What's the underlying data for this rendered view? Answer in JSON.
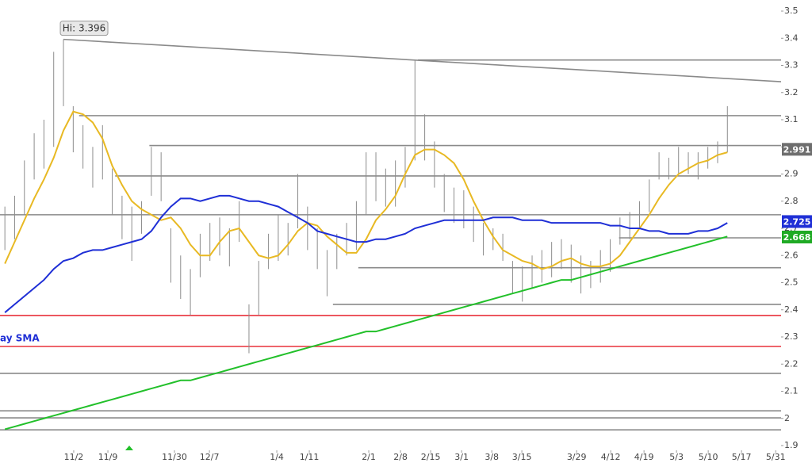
{
  "chart_data": {
    "type": "ohlc",
    "xlim": [
      -0.5,
      79.5
    ],
    "ylim": [
      1.8825,
      3.5409
    ],
    "yticks": [
      1.9,
      2,
      2.1,
      2.2,
      2.3,
      2.4,
      2.5,
      2.6,
      2.7,
      2.8,
      2.9,
      3,
      3.1,
      3.2,
      3.3,
      3.4,
      3.5
    ],
    "xticks": [
      {
        "value": 7.05,
        "label": "11/2"
      },
      {
        "value": 10.55,
        "label": "11/9"
      },
      {
        "value": 17.37,
        "label": "11/30"
      },
      {
        "value": 20.95,
        "label": "12/7"
      },
      {
        "value": 27.85,
        "label": "1/4"
      },
      {
        "value": 31.18,
        "label": "1/11"
      },
      {
        "value": 37.27,
        "label": "2/1"
      },
      {
        "value": 40.52,
        "label": "2/8"
      },
      {
        "value": 43.61,
        "label": "2/15"
      },
      {
        "value": 46.78,
        "label": "3/1"
      },
      {
        "value": 49.87,
        "label": "3/8"
      },
      {
        "value": 52.95,
        "label": "3/15"
      },
      {
        "value": 58.56,
        "label": "3/29"
      },
      {
        "value": 62.05,
        "label": "4/12"
      },
      {
        "value": 65.46,
        "label": "4/19"
      },
      {
        "value": 68.79,
        "label": "5/3"
      },
      {
        "value": 72.04,
        "label": "5/10"
      },
      {
        "value": 75.45,
        "label": "5/17"
      },
      {
        "value": 78.95,
        "label": "5/31"
      }
    ],
    "bar_color": "#8c8c8c",
    "x": [
      0,
      1,
      2,
      3,
      4,
      5,
      6,
      7,
      8,
      9,
      10,
      11,
      12,
      13,
      14,
      15,
      16,
      17,
      18,
      19,
      20,
      21,
      22,
      23,
      24,
      25,
      26,
      27,
      28,
      29,
      30,
      31,
      32,
      33,
      34,
      35,
      36,
      37,
      38,
      39,
      40,
      41,
      42,
      43,
      44,
      45,
      46,
      47,
      48,
      49,
      50,
      51,
      52,
      53,
      54,
      55,
      56,
      57,
      58,
      59,
      60,
      61,
      62,
      63,
      64,
      65,
      66,
      67,
      68,
      69,
      70,
      71,
      72,
      73,
      74
    ],
    "high": [
      2.78,
      2.82,
      2.95,
      3.05,
      3.1,
      3.35,
      3.396,
      3.15,
      3.08,
      3.0,
      3.08,
      2.92,
      2.82,
      2.78,
      2.8,
      3.0,
      2.98,
      2.7,
      2.6,
      2.55,
      2.68,
      2.72,
      2.74,
      2.7,
      2.8,
      2.42,
      2.58,
      2.68,
      2.75,
      2.72,
      2.9,
      2.78,
      2.7,
      2.62,
      2.68,
      2.72,
      2.8,
      2.98,
      2.98,
      2.92,
      2.95,
      3.0,
      3.32,
      3.12,
      3.02,
      2.9,
      2.85,
      2.84,
      2.78,
      2.72,
      2.7,
      2.68,
      2.58,
      2.56,
      2.6,
      2.62,
      2.65,
      2.66,
      2.64,
      2.6,
      2.58,
      2.62,
      2.66,
      2.74,
      2.76,
      2.8,
      2.88,
      2.98,
      2.96,
      3.0,
      2.98,
      2.98,
      3.0,
      3.02,
      3.15
    ],
    "low": [
      2.62,
      2.66,
      2.75,
      2.88,
      2.92,
      3.0,
      3.15,
      2.98,
      2.92,
      2.85,
      2.88,
      2.75,
      2.66,
      2.58,
      2.68,
      2.82,
      2.8,
      2.5,
      2.44,
      2.38,
      2.52,
      2.58,
      2.6,
      2.56,
      2.65,
      2.24,
      2.38,
      2.55,
      2.58,
      2.6,
      2.7,
      2.62,
      2.55,
      2.45,
      2.55,
      2.6,
      2.62,
      2.75,
      2.8,
      2.78,
      2.78,
      2.85,
      2.95,
      2.95,
      2.85,
      2.76,
      2.72,
      2.7,
      2.65,
      2.6,
      2.62,
      2.58,
      2.46,
      2.43,
      2.48,
      2.5,
      2.52,
      2.55,
      2.5,
      2.46,
      2.48,
      2.5,
      2.54,
      2.64,
      2.66,
      2.7,
      2.76,
      2.88,
      2.88,
      2.9,
      2.9,
      2.88,
      2.92,
      2.94,
      2.98
    ],
    "series": [
      {
        "color": "#e8b923",
        "values": [
          2.57,
          2.65,
          2.73,
          2.81,
          2.88,
          2.96,
          3.06,
          3.13,
          3.12,
          3.09,
          3.03,
          2.93,
          2.86,
          2.8,
          2.77,
          2.75,
          2.73,
          2.74,
          2.7,
          2.64,
          2.6,
          2.6,
          2.65,
          2.69,
          2.7,
          2.65,
          2.6,
          2.59,
          2.6,
          2.64,
          2.69,
          2.72,
          2.71,
          2.67,
          2.64,
          2.61,
          2.61,
          2.66,
          2.73,
          2.77,
          2.82,
          2.9,
          2.97,
          2.99,
          2.99,
          2.97,
          2.94,
          2.88,
          2.8,
          2.73,
          2.67,
          2.62,
          2.6,
          2.58,
          2.57,
          2.55,
          2.56,
          2.58,
          2.59,
          2.57,
          2.56,
          2.56,
          2.57,
          2.6,
          2.65,
          2.7,
          2.75,
          2.81,
          2.86,
          2.9,
          2.92,
          2.94,
          2.95,
          2.97,
          2.98
        ]
      },
      {
        "color": "#1f2fd6",
        "values": [
          2.39,
          2.42,
          2.45,
          2.48,
          2.51,
          2.55,
          2.58,
          2.59,
          2.61,
          2.62,
          2.62,
          2.63,
          2.64,
          2.65,
          2.66,
          2.69,
          2.74,
          2.78,
          2.81,
          2.81,
          2.8,
          2.81,
          2.82,
          2.82,
          2.81,
          2.8,
          2.8,
          2.79,
          2.78,
          2.76,
          2.74,
          2.72,
          2.69,
          2.68,
          2.67,
          2.66,
          2.65,
          2.65,
          2.66,
          2.66,
          2.67,
          2.68,
          2.7,
          2.71,
          2.72,
          2.73,
          2.73,
          2.73,
          2.73,
          2.73,
          2.74,
          2.74,
          2.74,
          2.73,
          2.73,
          2.73,
          2.72,
          2.72,
          2.72,
          2.72,
          2.72,
          2.72,
          2.71,
          2.71,
          2.7,
          2.7,
          2.69,
          2.69,
          2.68,
          2.68,
          2.68,
          2.69,
          2.69,
          2.7,
          2.72
        ]
      },
      {
        "color": "#22c02a",
        "values": [
          1.96,
          1.97,
          1.98,
          1.99,
          2.0,
          2.01,
          2.02,
          2.03,
          2.04,
          2.05,
          2.06,
          2.07,
          2.08,
          2.09,
          2.1,
          2.11,
          2.12,
          2.13,
          2.14,
          2.14,
          2.15,
          2.16,
          2.17,
          2.18,
          2.19,
          2.2,
          2.21,
          2.22,
          2.23,
          2.24,
          2.25,
          2.26,
          2.27,
          2.28,
          2.29,
          2.3,
          2.31,
          2.32,
          2.32,
          2.33,
          2.34,
          2.35,
          2.36,
          2.37,
          2.38,
          2.39,
          2.4,
          2.41,
          2.42,
          2.43,
          2.44,
          2.45,
          2.46,
          2.47,
          2.48,
          2.49,
          2.5,
          2.51,
          2.51,
          2.52,
          2.53,
          2.54,
          2.55,
          2.56,
          2.57,
          2.58,
          2.59,
          2.6,
          2.61,
          2.62,
          2.63,
          2.64,
          2.65,
          2.66,
          2.67
        ]
      }
    ],
    "levels": [
      {
        "value": 3.32,
        "x_start": 42.3,
        "color": "#8a8a8a"
      },
      {
        "value": 3.115,
        "x_start": 7.6,
        "color": "#8a8a8a"
      },
      {
        "value": 3.005,
        "x_start": 14.8,
        "color": "#8a8a8a"
      },
      {
        "value": 2.893,
        "x_start": 11.3,
        "color": "#8a8a8a"
      },
      {
        "value": 2.75,
        "x_start": -0.5,
        "color": "#8a8a8a"
      },
      {
        "value": 2.665,
        "x_start": 62.9,
        "color": "#8a8a8a"
      },
      {
        "value": 2.555,
        "x_start": 36.2,
        "color": "#8a8a8a"
      },
      {
        "value": 2.42,
        "x_start": 33.6,
        "color": "#8a8a8a"
      },
      {
        "value": 2.379,
        "x_start": -0.5,
        "color": "#e8323c"
      },
      {
        "value": 2.265,
        "x_start": -0.5,
        "color": "#e8323c"
      },
      {
        "value": 2.166,
        "x_start": -0.5,
        "color": "#8a8a8a"
      },
      {
        "value": 2.028,
        "x_start": -0.5,
        "color": "#8a8a8a"
      },
      {
        "value": 2.002,
        "x_start": -0.5,
        "color": "#8a8a8a"
      },
      {
        "value": 1.958,
        "x_start": -0.5,
        "color": "#8a8a8a"
      }
    ],
    "trendline": {
      "x": [
        6,
        79.5
      ],
      "values": [
        3.396,
        3.24
      ],
      "color": "#8a8a8a"
    },
    "price_labels": [
      {
        "value": 2.991,
        "color": "#6e6e6e"
      },
      {
        "value": 2.725,
        "color": "#1f2fd6"
      },
      {
        "value": 2.668,
        "color": "#1faa24"
      }
    ],
    "annotation": {
      "text": "Hi: 3.396",
      "x": 6,
      "y": 3.396
    },
    "legend_text": "ay SMA"
  }
}
